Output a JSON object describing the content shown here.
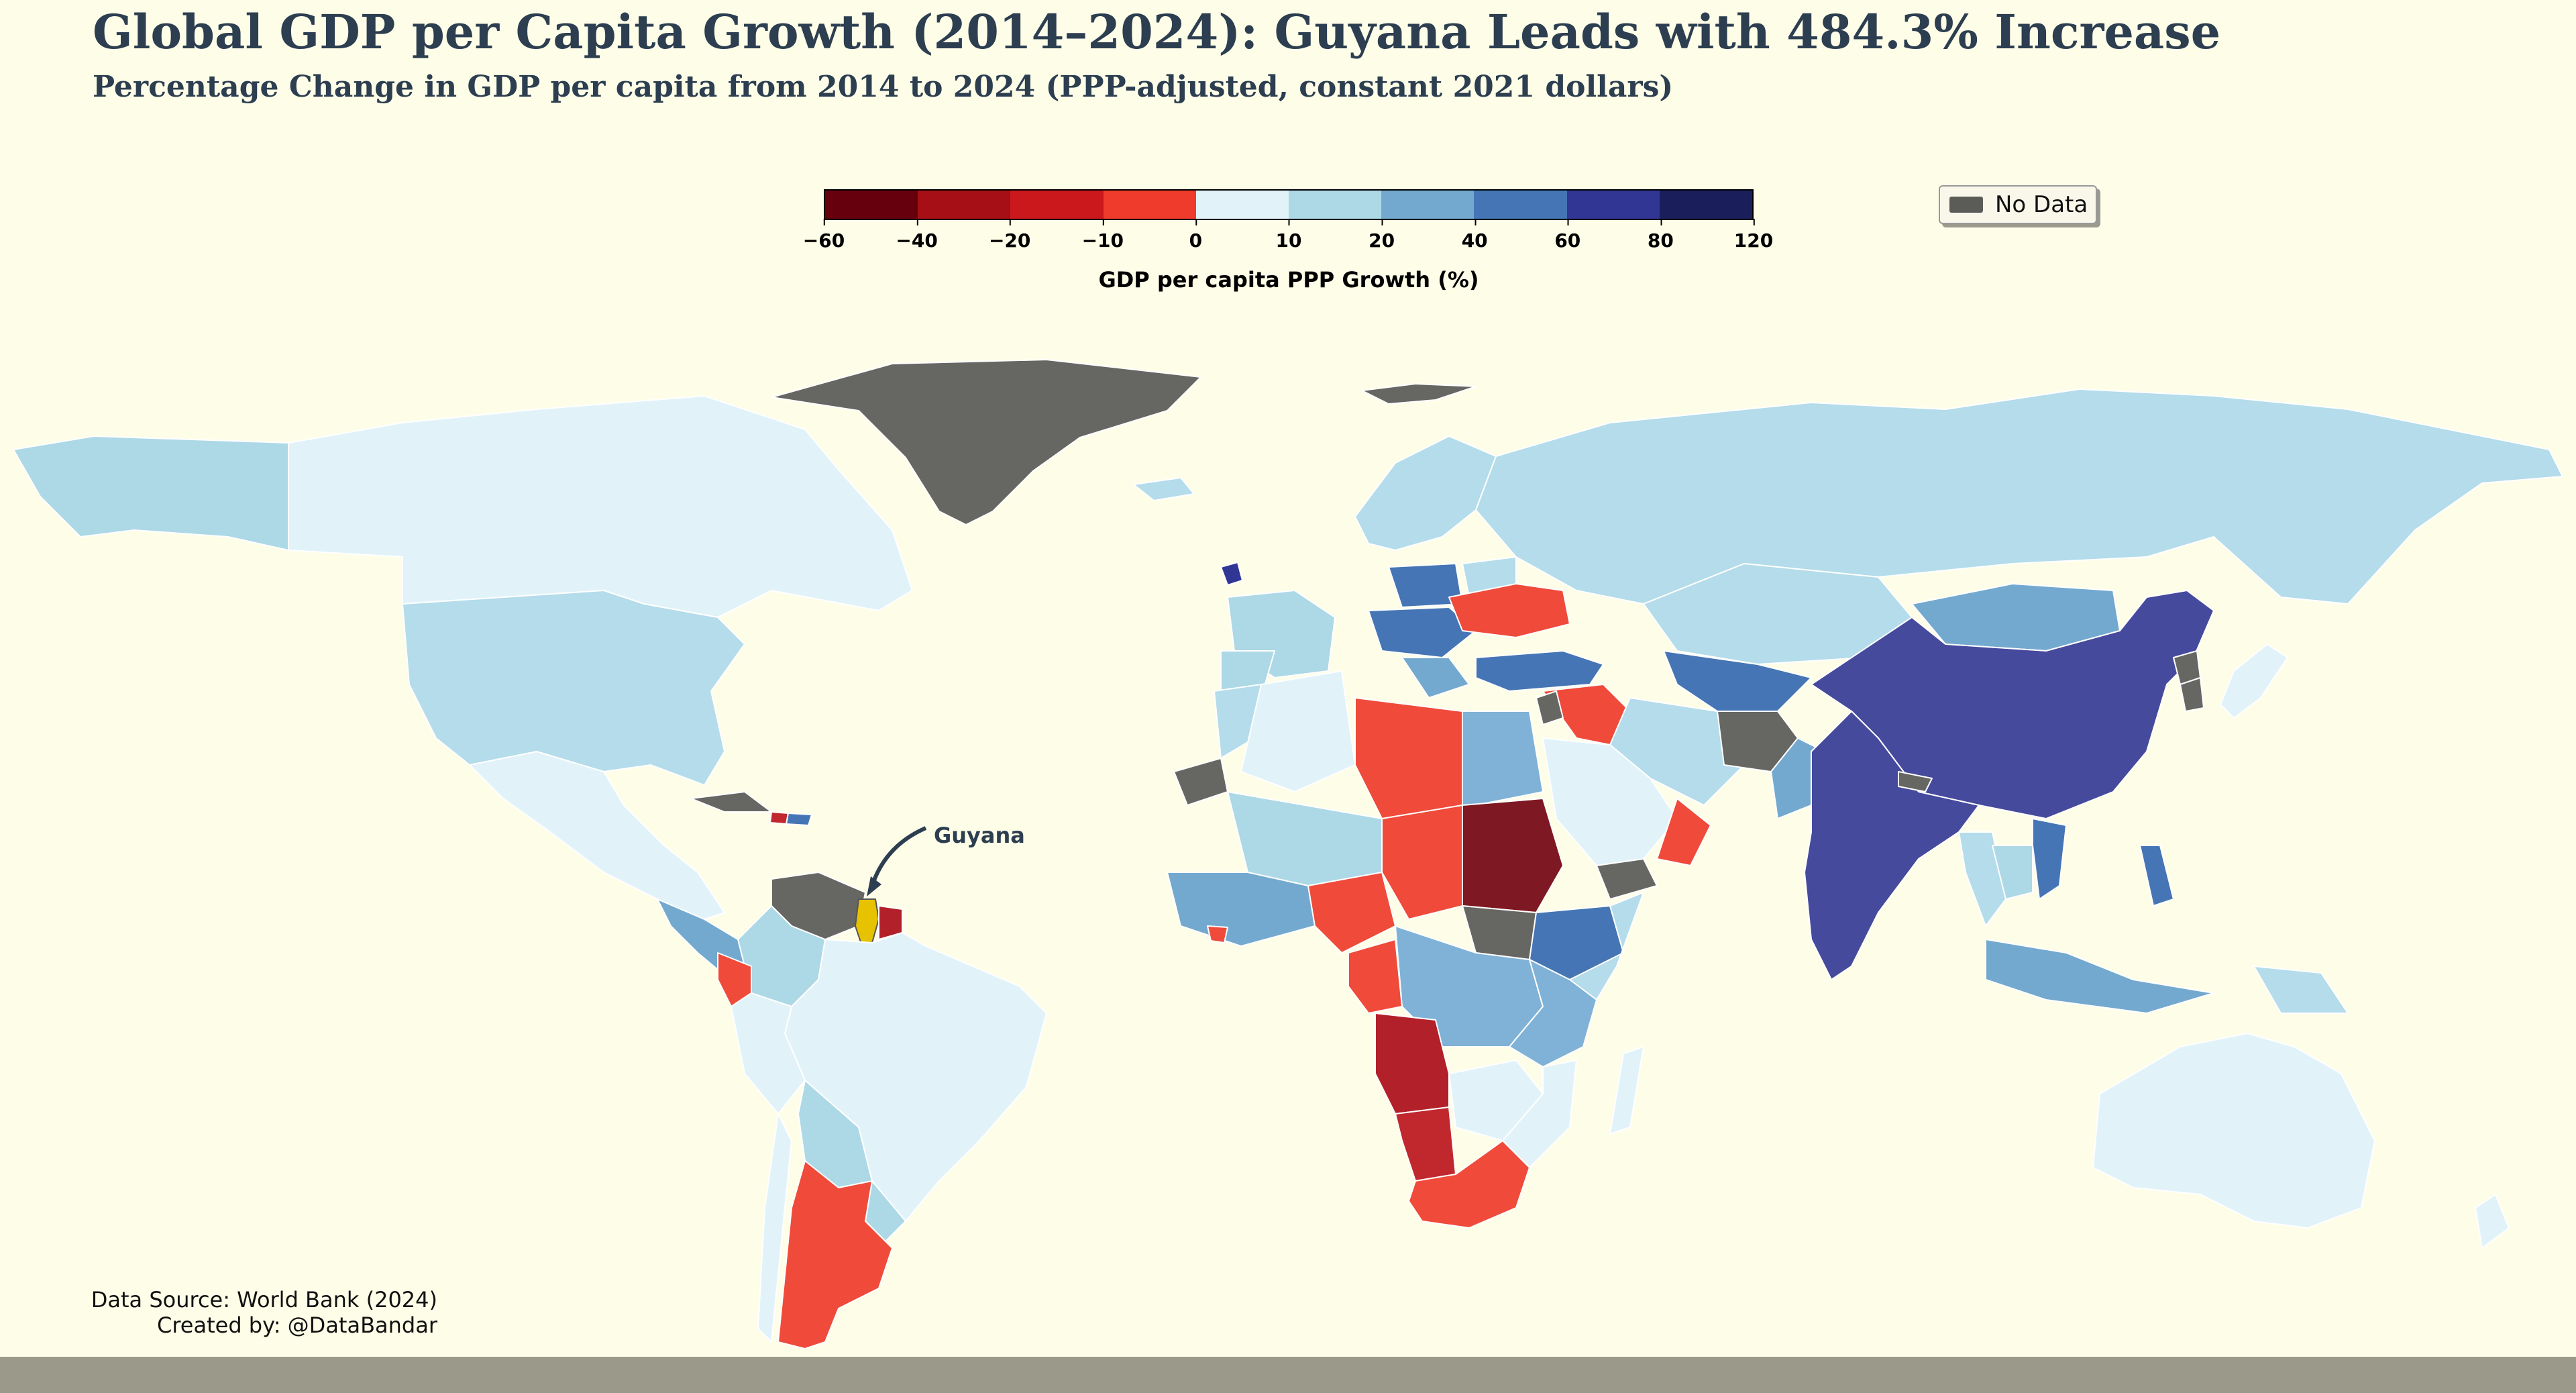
{
  "title": "Global GDP per Capita Growth (2014–2024): Guyana Leads with 484.3% Increase",
  "subtitle": "Percentage Change in GDP per capita from 2014 to 2024 (PPP-adjusted, constant 2021 dollars)",
  "colorbar": {
    "label": "GDP per capita PPP Growth (%)",
    "ticks": [
      "−60",
      "−40",
      "−20",
      "−10",
      "0",
      "10",
      "20",
      "40",
      "60",
      "80",
      "120"
    ],
    "colors": [
      "#67000d",
      "#a50f15",
      "#cb181d",
      "#ef3b2c",
      "#e1f3f9",
      "#add8e6",
      "#74a9cf",
      "#4575b4",
      "#313695",
      "#1a1f5c"
    ]
  },
  "legend": {
    "no_data_label": "No Data",
    "no_data_color": "#5b5b58"
  },
  "annotation": {
    "label": "Guyana",
    "highlight_color": "#e6c200"
  },
  "source": {
    "line1": "Data Source: World Bank (2024)",
    "line2": "Created by: @DataBandar"
  }
}
